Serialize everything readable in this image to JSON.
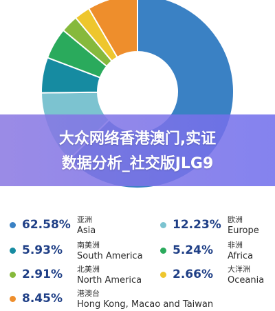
{
  "banner": {
    "line1": "大众网络香港澳门,实证",
    "line2": "数据分析_社交版JLG9"
  },
  "chart_data": {
    "type": "pie",
    "slices": [
      {
        "pct_label": "62.58%",
        "value": 62.58,
        "name_cn": "亚洲",
        "name_en": "Asia",
        "color": "#3a81c4"
      },
      {
        "pct_label": "12.23%",
        "value": 12.23,
        "name_cn": "欧洲",
        "name_en": "Europe",
        "color": "#7cc3d0"
      },
      {
        "pct_label": "5.93%",
        "value": 5.93,
        "name_cn": "南美洲",
        "name_en": "South America",
        "color": "#168ba1"
      },
      {
        "pct_label": "5.24%",
        "value": 5.24,
        "name_cn": "非洲",
        "name_en": "Africa",
        "color": "#2aaa5c"
      },
      {
        "pct_label": "2.91%",
        "value": 2.91,
        "name_cn": "北美洲",
        "name_en": "North America",
        "color": "#86b93c"
      },
      {
        "pct_label": "2.66%",
        "value": 2.66,
        "name_cn": "大洋洲",
        "name_en": "Oceania",
        "color": "#eec62d"
      },
      {
        "pct_label": "8.45%",
        "value": 8.45,
        "name_cn": "港澳台",
        "name_en": "Hong Kong, Macao and Taiwan",
        "color": "#ee8e2c"
      }
    ]
  }
}
